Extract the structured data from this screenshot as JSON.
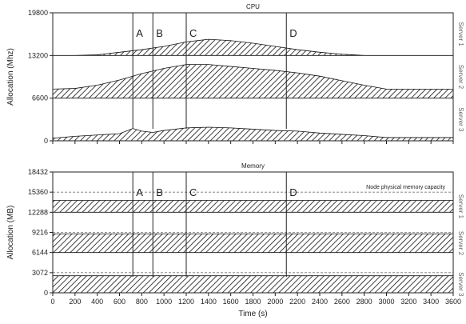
{
  "chart_data": [
    {
      "type": "area",
      "title": "CPU",
      "xlabel": "",
      "ylabel": "Allocation (Mhz)",
      "xlim": [
        0,
        3600
      ],
      "ylim": [
        0,
        19800
      ],
      "yticks": [
        0,
        6600,
        13200,
        19800
      ],
      "grid": false,
      "markers": [
        {
          "label": "A",
          "x": 720
        },
        {
          "label": "B",
          "x": 900
        },
        {
          "label": "C",
          "x": 1200
        },
        {
          "label": "D",
          "x": 2100
        }
      ],
      "series": [
        {
          "name": "Server 1",
          "base": 13200,
          "x": [
            0,
            200,
            400,
            600,
            800,
            1000,
            1200,
            1400,
            1600,
            1800,
            2000,
            2200,
            2400,
            2600,
            2800,
            3000,
            3600
          ],
          "values": [
            13200,
            13200,
            13300,
            13700,
            14100,
            14600,
            15300,
            15700,
            15500,
            15100,
            14600,
            14100,
            13700,
            13400,
            13200,
            13200,
            13200
          ]
        },
        {
          "name": "Server 2",
          "base": 6600,
          "x": [
            0,
            200,
            400,
            600,
            800,
            1000,
            1200,
            1400,
            1600,
            1800,
            2000,
            2200,
            2400,
            2600,
            2800,
            3000,
            3600
          ],
          "values": [
            8000,
            8100,
            8600,
            9400,
            10400,
            11200,
            11800,
            11800,
            11500,
            11200,
            10900,
            10500,
            10000,
            9300,
            8600,
            8000,
            8000
          ]
        },
        {
          "name": "Server 3",
          "base": 0,
          "x": [
            0,
            200,
            400,
            600,
            720,
            800,
            900,
            1000,
            1200,
            1400,
            1600,
            1800,
            2000,
            2200,
            2400,
            2600,
            2800,
            3000,
            3600
          ],
          "values": [
            400,
            700,
            900,
            1100,
            1900,
            1500,
            1300,
            1600,
            2000,
            2100,
            2000,
            1800,
            1600,
            1500,
            1200,
            1000,
            800,
            500,
            500
          ]
        }
      ]
    },
    {
      "type": "area",
      "title": "Memory",
      "xlabel": "Time (s)",
      "ylabel": "Allocation (MB)",
      "xlim": [
        0,
        3600
      ],
      "ylim": [
        0,
        18432
      ],
      "yticks": [
        0,
        3072,
        6144,
        9216,
        12288,
        15360,
        18432
      ],
      "xticks": [
        0,
        200,
        400,
        600,
        800,
        1000,
        1200,
        1400,
        1600,
        1800,
        2000,
        2200,
        2400,
        2600,
        2800,
        3000,
        3200,
        3400,
        3600
      ],
      "grid": false,
      "capacity_lines": [
        3072,
        9216,
        15360
      ],
      "annotation": "Node physical memory capacity",
      "markers": [
        {
          "label": "A",
          "x": 720
        },
        {
          "label": "B",
          "x": 900
        },
        {
          "label": "C",
          "x": 1200
        },
        {
          "label": "D",
          "x": 2100
        }
      ],
      "series": [
        {
          "name": "Server 1",
          "band": [
            12288,
            14100
          ]
        },
        {
          "name": "Server 2",
          "band": [
            6144,
            9000
          ]
        },
        {
          "name": "Server 3",
          "band": [
            0,
            2600
          ]
        }
      ]
    }
  ]
}
